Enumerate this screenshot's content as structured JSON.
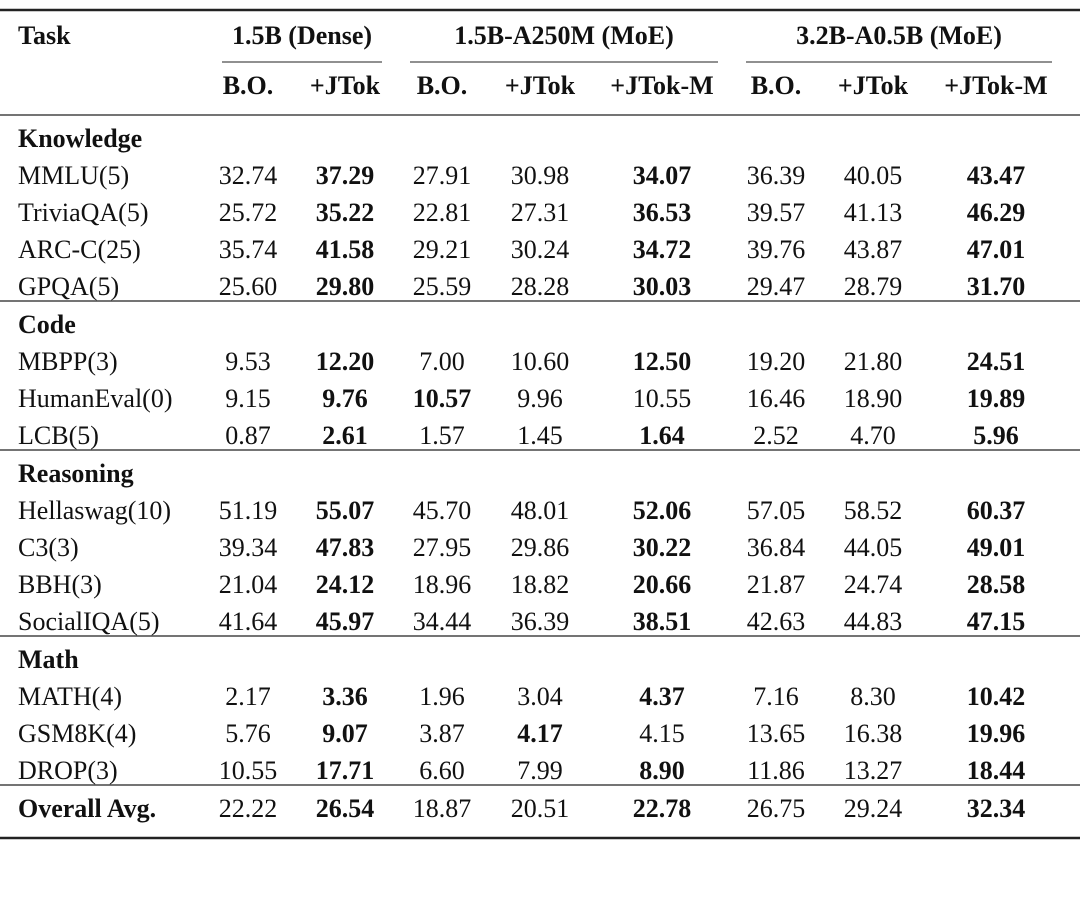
{
  "header": {
    "task": "Task",
    "groups": [
      {
        "title": "1.5B (Dense)",
        "columns": [
          "B.O.",
          "+JTok"
        ]
      },
      {
        "title": "1.5B-A250M (MoE)",
        "columns": [
          "B.O.",
          "+JTok",
          "+JTok-M"
        ]
      },
      {
        "title": "3.2B-A0.5B (MoE)",
        "columns": [
          "B.O.",
          "+JTok",
          "+JTok-M"
        ]
      }
    ]
  },
  "sections": [
    {
      "title": "Knowledge",
      "rows": [
        {
          "task": "MMLU(5)",
          "values": [
            "32.74",
            "37.29",
            "27.91",
            "30.98",
            "34.07",
            "36.39",
            "40.05",
            "43.47"
          ],
          "bold": [
            1,
            4,
            7
          ]
        },
        {
          "task": "TriviaQA(5)",
          "values": [
            "25.72",
            "35.22",
            "22.81",
            "27.31",
            "36.53",
            "39.57",
            "41.13",
            "46.29"
          ],
          "bold": [
            1,
            4,
            7
          ]
        },
        {
          "task": "ARC-C(25)",
          "values": [
            "35.74",
            "41.58",
            "29.21",
            "30.24",
            "34.72",
            "39.76",
            "43.87",
            "47.01"
          ],
          "bold": [
            1,
            4,
            7
          ]
        },
        {
          "task": "GPQA(5)",
          "values": [
            "25.60",
            "29.80",
            "25.59",
            "28.28",
            "30.03",
            "29.47",
            "28.79",
            "31.70"
          ],
          "bold": [
            1,
            4,
            7
          ]
        }
      ]
    },
    {
      "title": "Code",
      "rows": [
        {
          "task": "MBPP(3)",
          "values": [
            "9.53",
            "12.20",
            "7.00",
            "10.60",
            "12.50",
            "19.20",
            "21.80",
            "24.51"
          ],
          "bold": [
            1,
            4,
            7
          ]
        },
        {
          "task": "HumanEval(0)",
          "values": [
            "9.15",
            "9.76",
            "10.57",
            "9.96",
            "10.55",
            "16.46",
            "18.90",
            "19.89"
          ],
          "bold": [
            1,
            2,
            7
          ]
        },
        {
          "task": "LCB(5)",
          "values": [
            "0.87",
            "2.61",
            "1.57",
            "1.45",
            "1.64",
            "2.52",
            "4.70",
            "5.96"
          ],
          "bold": [
            1,
            4,
            7
          ]
        }
      ]
    },
    {
      "title": "Reasoning",
      "rows": [
        {
          "task": "Hellaswag(10)",
          "values": [
            "51.19",
            "55.07",
            "45.70",
            "48.01",
            "52.06",
            "57.05",
            "58.52",
            "60.37"
          ],
          "bold": [
            1,
            4,
            7
          ]
        },
        {
          "task": "C3(3)",
          "values": [
            "39.34",
            "47.83",
            "27.95",
            "29.86",
            "30.22",
            "36.84",
            "44.05",
            "49.01"
          ],
          "bold": [
            1,
            4,
            7
          ]
        },
        {
          "task": "BBH(3)",
          "values": [
            "21.04",
            "24.12",
            "18.96",
            "18.82",
            "20.66",
            "21.87",
            "24.74",
            "28.58"
          ],
          "bold": [
            1,
            4,
            7
          ]
        },
        {
          "task": "SocialIQA(5)",
          "values": [
            "41.64",
            "45.97",
            "34.44",
            "36.39",
            "38.51",
            "42.63",
            "44.83",
            "47.15"
          ],
          "bold": [
            1,
            4,
            7
          ]
        }
      ]
    },
    {
      "title": "Math",
      "rows": [
        {
          "task": "MATH(4)",
          "values": [
            "2.17",
            "3.36",
            "1.96",
            "3.04",
            "4.37",
            "7.16",
            "8.30",
            "10.42"
          ],
          "bold": [
            1,
            4,
            7
          ]
        },
        {
          "task": "GSM8K(4)",
          "values": [
            "5.76",
            "9.07",
            "3.87",
            "4.17",
            "4.15",
            "13.65",
            "16.38",
            "19.96"
          ],
          "bold": [
            1,
            3,
            7
          ]
        },
        {
          "task": "DROP(3)",
          "values": [
            "10.55",
            "17.71",
            "6.60",
            "7.99",
            "8.90",
            "11.86",
            "13.27",
            "18.44"
          ],
          "bold": [
            1,
            4,
            7
          ]
        }
      ]
    }
  ],
  "overall": {
    "task": "Overall Avg.",
    "values": [
      "22.22",
      "26.54",
      "18.87",
      "20.51",
      "22.78",
      "26.75",
      "29.24",
      "32.34"
    ],
    "bold": [
      1,
      4,
      7
    ]
  }
}
